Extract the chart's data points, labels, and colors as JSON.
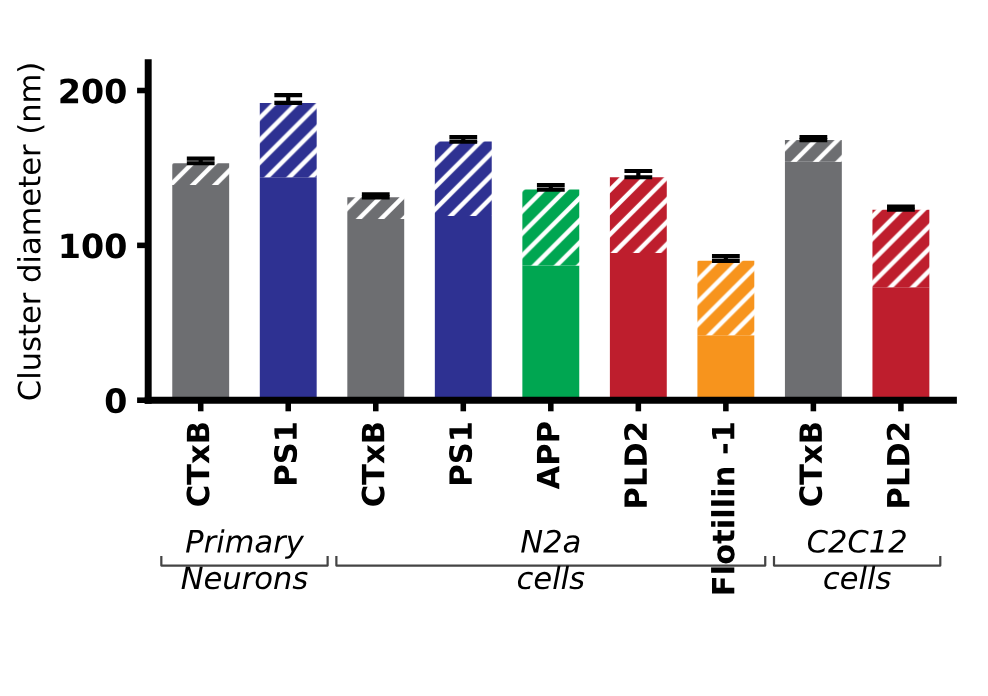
{
  "chart_data": {
    "type": "bar",
    "stacked": true,
    "ylabel": "Cluster diameter (nm)",
    "categories": [
      "CTxB",
      "PS1",
      "CTxB",
      "PS1",
      "APP",
      "PLD2",
      "Flotillin -1",
      "CTxB",
      "PLD2"
    ],
    "series": [
      {
        "colors": [
          "#6d6e71",
          "#2e3192",
          "#6d6e71",
          "#2e3192",
          "#00a651",
          "#be1e2d",
          "#f7941d",
          "#6d6e71",
          "#be1e2d"
        ],
        "values": [
          139,
          144,
          117,
          119,
          87,
          95,
          42,
          154,
          73
        ]
      },
      {
        "colors": [
          "#6d6e71",
          "#2e3192",
          "#6d6e71",
          "#2e3192",
          "#00a651",
          "#be1e2d",
          "#f7941d",
          "#6d6e71",
          "#be1e2d"
        ],
        "values": [
          14,
          48,
          14,
          48,
          49,
          49,
          48,
          14,
          50
        ],
        "errors": [
          3,
          5,
          2,
          3,
          3,
          4,
          3,
          2,
          2
        ]
      }
    ],
    "ylim": [
      0,
      218
    ],
    "yticks": [
      0,
      100,
      200
    ],
    "grid": false,
    "legend": false,
    "annotations": [
      "Primary\nNeurons",
      "N2a\ncells",
      "C2C12\ncells"
    ]
  }
}
